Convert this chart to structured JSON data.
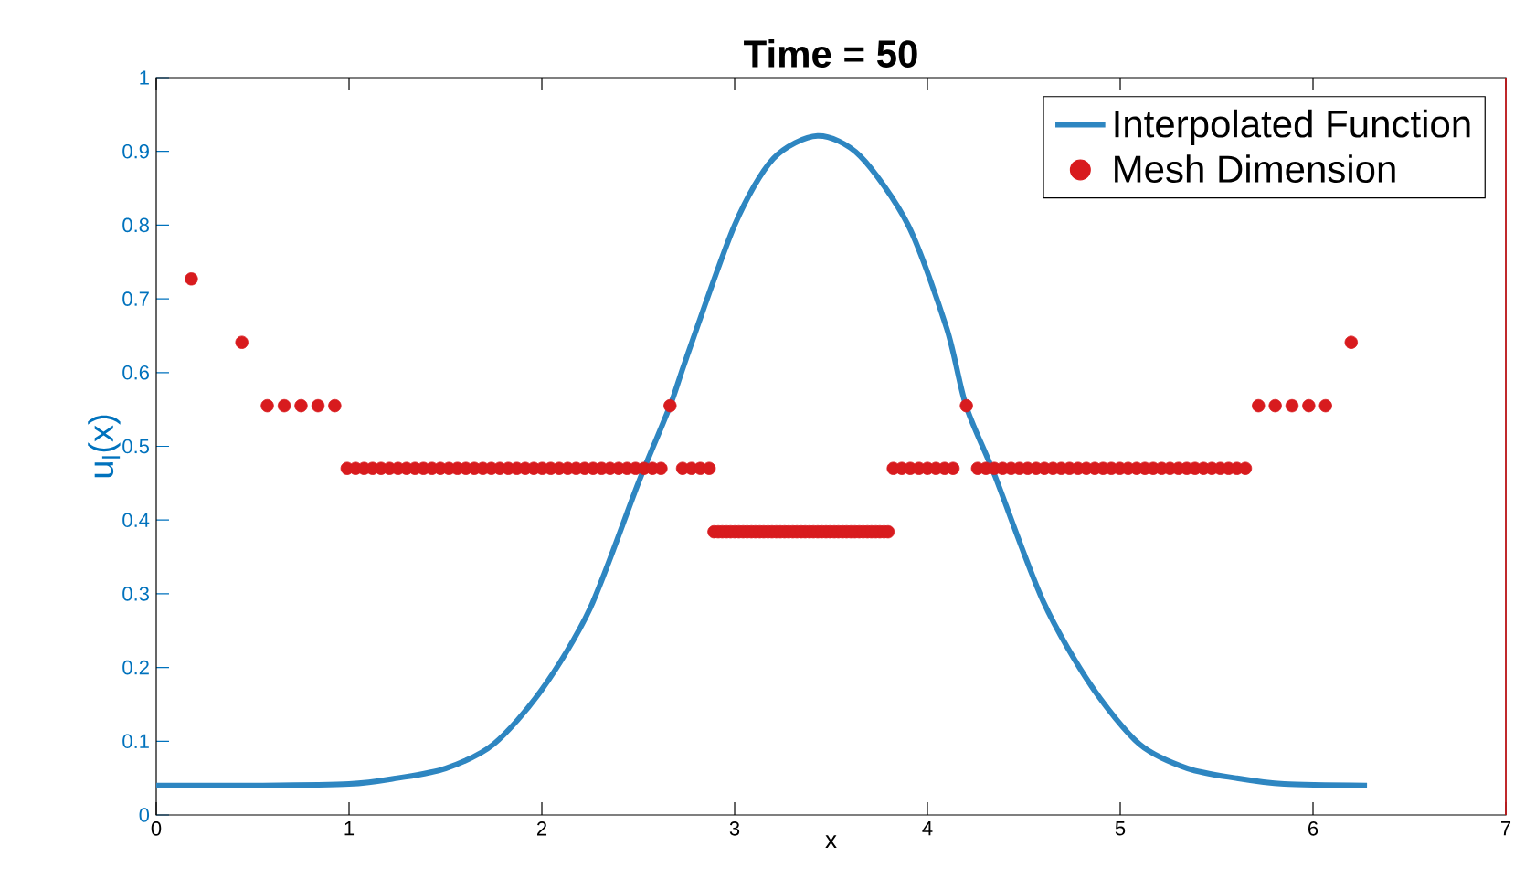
{
  "chart_data": {
    "type": "line",
    "title": "Time =  50",
    "xlabel": "x",
    "ylabel": "u$_{l}$(x)",
    "xlim": [
      0,
      7
    ],
    "xticks": [
      0,
      1,
      2,
      3,
      4,
      5,
      6,
      7
    ],
    "ylim": [
      0,
      1
    ],
    "yticks": [
      0,
      0.1,
      0.2,
      0.3,
      0.4,
      0.5,
      0.6,
      0.7,
      0.8,
      0.9,
      1
    ],
    "legend": "top right",
    "grid": false,
    "series": [
      {
        "name": "Interpolated Function",
        "color": "#2e86c1",
        "marker": "none",
        "line_style": "solid",
        "x": [
          0,
          0.5,
          1.0,
          1.25,
          1.5,
          1.75,
          2.0,
          2.25,
          2.5,
          2.665,
          2.75,
          3.0,
          3.2,
          3.43,
          3.65,
          3.9,
          4.1,
          4.2,
          4.35,
          4.6,
          4.85,
          5.1,
          5.35,
          5.6,
          5.85,
          6.28
        ],
        "values": [
          0.04,
          0.04,
          0.042,
          0.05,
          0.063,
          0.096,
          0.17,
          0.28,
          0.45,
          0.555,
          0.62,
          0.8,
          0.89,
          0.921,
          0.894,
          0.8,
          0.66,
          0.555,
          0.46,
          0.29,
          0.175,
          0.096,
          0.063,
          0.05,
          0.042,
          0.04
        ]
      },
      {
        "name": "Mesh Dimension",
        "type": "scatter",
        "color": "#d81b1e",
        "marker": "circle",
        "x": [
          0.182,
          0.444,
          0.576,
          0.664,
          0.751,
          0.839,
          0.926,
          0.99,
          1.034,
          1.078,
          1.122,
          1.166,
          1.21,
          1.254,
          1.298,
          1.342,
          1.386,
          1.43,
          1.474,
          1.518,
          1.562,
          1.606,
          1.65,
          1.694,
          1.738,
          1.782,
          1.826,
          1.87,
          1.914,
          1.958,
          2.002,
          2.046,
          2.09,
          2.134,
          2.178,
          2.222,
          2.266,
          2.31,
          2.354,
          2.398,
          2.442,
          2.486,
          2.53,
          2.574,
          2.618,
          2.665,
          2.73,
          2.776,
          2.822,
          2.868,
          2.893,
          2.915,
          2.936,
          2.958,
          2.979,
          3.001,
          3.022,
          3.044,
          3.065,
          3.087,
          3.108,
          3.13,
          3.151,
          3.173,
          3.194,
          3.216,
          3.237,
          3.259,
          3.28,
          3.302,
          3.323,
          3.345,
          3.366,
          3.388,
          3.409,
          3.431,
          3.452,
          3.474,
          3.495,
          3.517,
          3.538,
          3.56,
          3.581,
          3.603,
          3.624,
          3.646,
          3.667,
          3.689,
          3.71,
          3.732,
          3.753,
          3.775,
          3.796,
          3.823,
          3.867,
          3.911,
          3.956,
          4.0,
          4.044,
          4.089,
          4.133,
          4.202,
          4.26,
          4.303,
          4.347,
          4.39,
          4.434,
          4.477,
          4.52,
          4.564,
          4.607,
          4.651,
          4.694,
          4.737,
          4.781,
          4.824,
          4.868,
          4.911,
          4.954,
          4.998,
          5.041,
          5.085,
          5.128,
          5.171,
          5.215,
          5.258,
          5.302,
          5.345,
          5.388,
          5.432,
          5.475,
          5.519,
          5.562,
          5.605,
          5.649,
          5.717,
          5.804,
          5.891,
          5.978,
          6.065,
          6.198
        ],
        "values": [
          0.727,
          0.641,
          0.555,
          0.555,
          0.555,
          0.555,
          0.555,
          0.47,
          0.47,
          0.47,
          0.47,
          0.47,
          0.47,
          0.47,
          0.47,
          0.47,
          0.47,
          0.47,
          0.47,
          0.47,
          0.47,
          0.47,
          0.47,
          0.47,
          0.47,
          0.47,
          0.47,
          0.47,
          0.47,
          0.47,
          0.47,
          0.47,
          0.47,
          0.47,
          0.47,
          0.47,
          0.47,
          0.47,
          0.47,
          0.47,
          0.47,
          0.47,
          0.47,
          0.47,
          0.47,
          0.555,
          0.47,
          0.47,
          0.47,
          0.47,
          0.384,
          0.384,
          0.384,
          0.384,
          0.384,
          0.384,
          0.384,
          0.384,
          0.384,
          0.384,
          0.384,
          0.384,
          0.384,
          0.384,
          0.384,
          0.384,
          0.384,
          0.384,
          0.384,
          0.384,
          0.384,
          0.384,
          0.384,
          0.384,
          0.384,
          0.384,
          0.384,
          0.384,
          0.384,
          0.384,
          0.384,
          0.384,
          0.384,
          0.384,
          0.384,
          0.384,
          0.384,
          0.384,
          0.384,
          0.384,
          0.384,
          0.384,
          0.384,
          0.47,
          0.47,
          0.47,
          0.47,
          0.47,
          0.47,
          0.47,
          0.47,
          0.555,
          0.47,
          0.47,
          0.47,
          0.47,
          0.47,
          0.47,
          0.47,
          0.47,
          0.47,
          0.47,
          0.47,
          0.47,
          0.47,
          0.47,
          0.47,
          0.47,
          0.47,
          0.47,
          0.47,
          0.47,
          0.47,
          0.47,
          0.47,
          0.47,
          0.47,
          0.47,
          0.47,
          0.47,
          0.47,
          0.47,
          0.47,
          0.47,
          0.47,
          0.555,
          0.555,
          0.555,
          0.555,
          0.555,
          0.641
        ]
      }
    ]
  }
}
